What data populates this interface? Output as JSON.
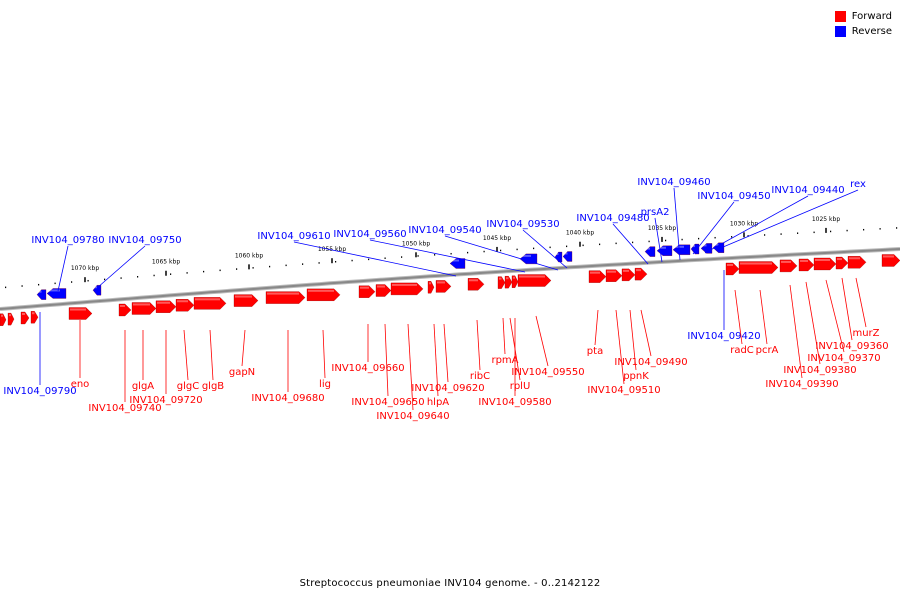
{
  "legend": {
    "forward": {
      "label": "Forward",
      "color": "#ff0000"
    },
    "reverse": {
      "label": "Reverse",
      "color": "#0000ff"
    }
  },
  "footer": "Streptococcus pneumoniae INV104 genome. - 0..2142122",
  "backbone_color": "#888888",
  "ticks": [
    "1070 kbp",
    "1065 kbp",
    "1060 kbp",
    "1055 kbp",
    "1050 kbp",
    "1045 kbp",
    "1040 kbp",
    "1035 kbp",
    "1030 kbp",
    "1025 kbp"
  ],
  "genes_reverse": [
    "INV104_09790",
    "INV104_09780",
    "INV104_09750",
    "INV104_09610",
    "INV104_09560",
    "INV104_09540",
    "INV104_09530",
    "INV104_09480",
    "prsA2",
    "INV104_09460",
    "INV104_09450",
    "INV104_09440",
    "rex",
    "INV104_09420"
  ],
  "genes_forward": [
    "eno",
    "INV104_09740",
    "glgA",
    "INV104_09720",
    "glgC",
    "glgB",
    "gapN",
    "INV104_09680",
    "lig",
    "INV104_09660",
    "INV104_09650",
    "INV104_09640",
    "hlpA",
    "INV104_09620",
    "ribC",
    "rpmA",
    "rplU",
    "INV104_09580",
    "INV104_09550",
    "pta",
    "INV104_09510",
    "ppnK",
    "INV104_09490",
    "radC",
    "pcrA",
    "INV104_09390",
    "INV104_09380",
    "INV104_09370",
    "INV104_09360",
    "murZ"
  ]
}
